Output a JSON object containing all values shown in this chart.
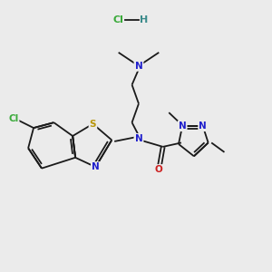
{
  "bg_color": "#ebebeb",
  "bond_color": "#1a1a1a",
  "n_color": "#2020cc",
  "s_color": "#b8960a",
  "o_color": "#cc2020",
  "cl_color": "#3aaa3a",
  "hcl_cl_color": "#3aaa3a",
  "hcl_h_color": "#3a8a8a",
  "figsize": [
    3.0,
    3.0
  ],
  "dpi": 100,
  "xlim": [
    0,
    10
  ],
  "ylim": [
    0,
    10
  ]
}
